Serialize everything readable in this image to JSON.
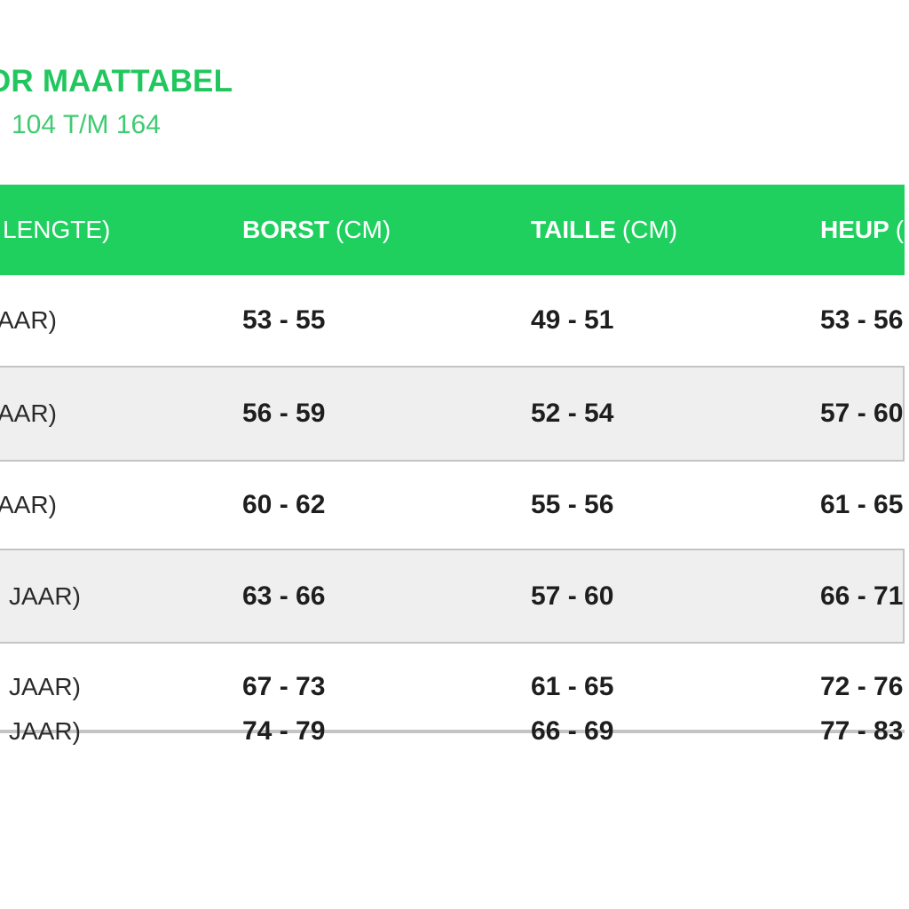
{
  "header": {
    "title": "OR MAATTABEL",
    "subtitle": "104 T/M 164"
  },
  "table": {
    "header": {
      "col1": "LENGTE)",
      "col2": {
        "main": "BORST",
        "unit": "(CM)"
      },
      "col3": {
        "main": "TAILLE",
        "unit": "(CM)"
      },
      "col4": {
        "main": "HEUP",
        "unit": "("
      }
    },
    "rows": [
      {
        "label": "AAR)",
        "borst": "53 - 55",
        "taille": "49 - 51",
        "heup": "53 - 56"
      },
      {
        "label": "AAR)",
        "borst": "56 - 59",
        "taille": "52 - 54",
        "heup": "57 - 60"
      },
      {
        "label": "AAR)",
        "borst": "60 - 62",
        "taille": "55 - 56",
        "heup": "61 - 65"
      },
      {
        "label": "JAAR)",
        "borst": "63 - 66",
        "taille": "57 - 60",
        "heup": "66 - 71"
      },
      {
        "label": "JAAR)",
        "borst": "67 - 73",
        "taille": "61 - 65",
        "heup": "72 - 76"
      },
      {
        "label": "JAAR)",
        "borst": "74 - 79",
        "taille": "66 - 69",
        "heup": "77 - 83"
      }
    ]
  },
  "colors": {
    "brand_green": "#1fd05f",
    "title_green": "#21c75e",
    "subtitle_green": "#3ecb71",
    "row_alt_bg": "#efefef",
    "row_border": "#c4c4c4",
    "text_dark": "#1e1e1e",
    "header_text": "#ffffff"
  }
}
